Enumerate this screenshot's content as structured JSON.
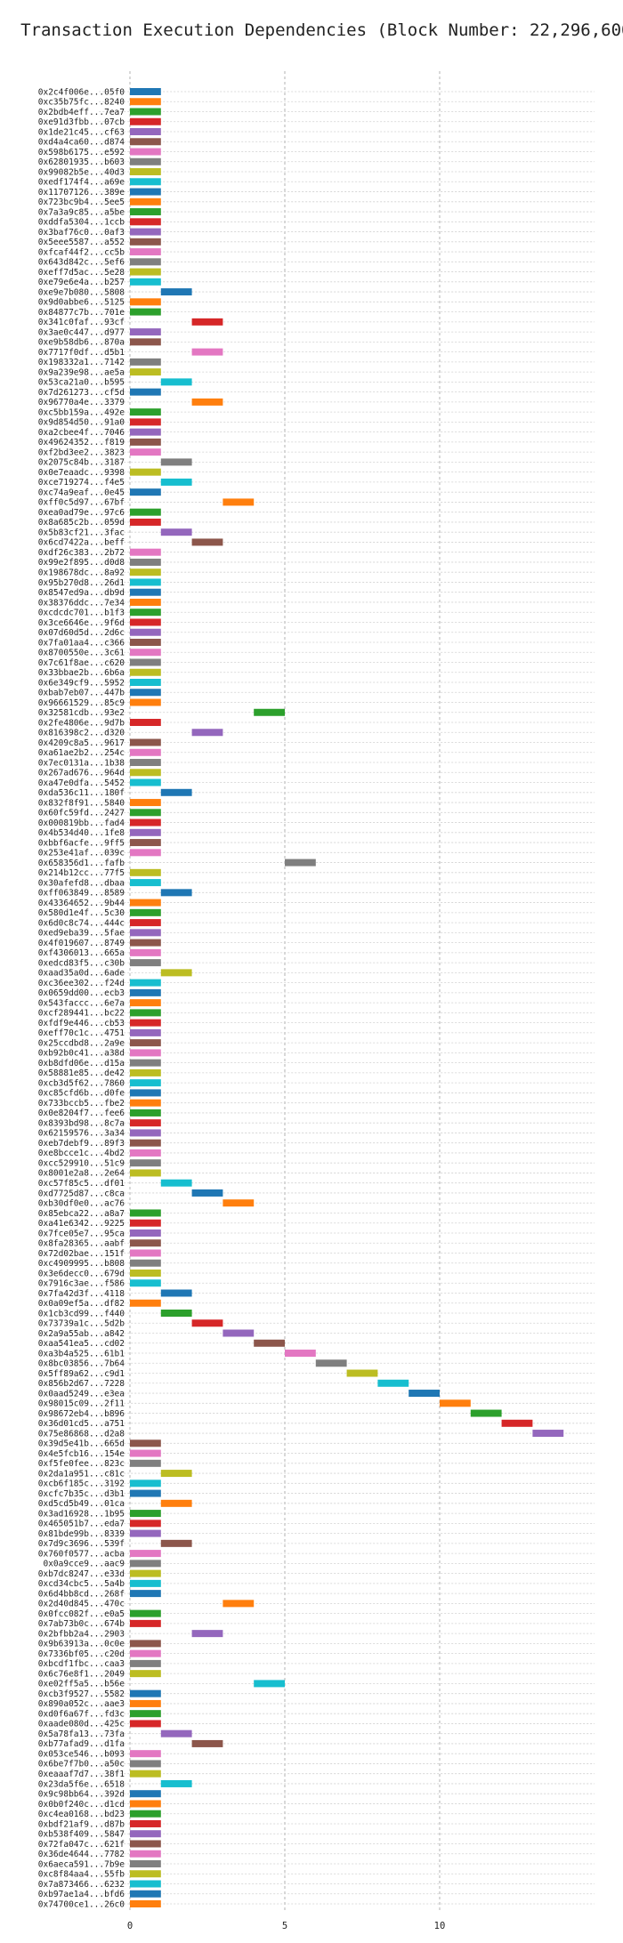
{
  "chart_data": {
    "type": "bar",
    "orientation": "horizontal",
    "title": "Transaction Execution Dependencies (Block Number: 22,296,600)",
    "xlabel": "",
    "ylabel": "",
    "xlim": [
      -1,
      15
    ],
    "xticks": [
      0,
      5,
      10
    ],
    "grid": true,
    "legend": "none",
    "palette": [
      "#1f77b4",
      "#ff7f0e",
      "#2ca02c",
      "#d62728",
      "#9467bd",
      "#8c564b",
      "#e377c2",
      "#7f7f7f",
      "#bcbd22",
      "#17becf"
    ],
    "bars": [
      {
        "label": "0x2c4f006e...05f0",
        "start": 0,
        "end": 1
      },
      {
        "label": "0xc35b75fc...8240",
        "start": 0,
        "end": 1
      },
      {
        "label": "0x2bdb4eff...7ea7",
        "start": 0,
        "end": 1
      },
      {
        "label": "0xe91d3fbb...07cb",
        "start": 0,
        "end": 1
      },
      {
        "label": "0x1de21c45...cf63",
        "start": 0,
        "end": 1
      },
      {
        "label": "0xd4a4ca60...d874",
        "start": 0,
        "end": 1
      },
      {
        "label": "0x598b6175...e592",
        "start": 0,
        "end": 1
      },
      {
        "label": "0x62801935...b603",
        "start": 0,
        "end": 1
      },
      {
        "label": "0x99082b5e...40d3",
        "start": 0,
        "end": 1
      },
      {
        "label": "0xedf174f4...a69e",
        "start": 0,
        "end": 1
      },
      {
        "label": "0x11707126...389e",
        "start": 0,
        "end": 1
      },
      {
        "label": "0x723bc9b4...5ee5",
        "start": 0,
        "end": 1
      },
      {
        "label": "0x7a3a9c85...a5be",
        "start": 0,
        "end": 1
      },
      {
        "label": "0xddfa5304...1ccb",
        "start": 0,
        "end": 1
      },
      {
        "label": "0x3baf76c0...0af3",
        "start": 0,
        "end": 1
      },
      {
        "label": "0x5eee5587...a552",
        "start": 0,
        "end": 1
      },
      {
        "label": "0xfcaf44f2...cc5b",
        "start": 0,
        "end": 1
      },
      {
        "label": "0x643d842c...5ef6",
        "start": 0,
        "end": 1
      },
      {
        "label": "0xeff7d5ac...5e28",
        "start": 0,
        "end": 1
      },
      {
        "label": "0xe79e6e4a...b257",
        "start": 0,
        "end": 1
      },
      {
        "label": "0xe9e7b080...5808",
        "start": 1,
        "end": 2
      },
      {
        "label": "0x9d0abbe6...5125",
        "start": 0,
        "end": 1
      },
      {
        "label": "0x84877c7b...701e",
        "start": 0,
        "end": 1
      },
      {
        "label": "0x341c0faf...93cf",
        "start": 2,
        "end": 3
      },
      {
        "label": "0x3ae0c447...d977",
        "start": 0,
        "end": 1
      },
      {
        "label": "0xe9b58db6...870a",
        "start": 0,
        "end": 1
      },
      {
        "label": "0x7717f0df...d5b1",
        "start": 2,
        "end": 3
      },
      {
        "label": "0x198332a1...7142",
        "start": 0,
        "end": 1
      },
      {
        "label": "0x9a239e98...ae5a",
        "start": 0,
        "end": 1
      },
      {
        "label": "0x53ca21a0...b595",
        "start": 1,
        "end": 2
      },
      {
        "label": "0x7d261273...cf5d",
        "start": 0,
        "end": 1
      },
      {
        "label": "0x96770a4e...3379",
        "start": 2,
        "end": 3
      },
      {
        "label": "0xc5bb159a...492e",
        "start": 0,
        "end": 1
      },
      {
        "label": "0x9d854d50...91a0",
        "start": 0,
        "end": 1
      },
      {
        "label": "0xa2cbee4f...7046",
        "start": 0,
        "end": 1
      },
      {
        "label": "0x49624352...f819",
        "start": 0,
        "end": 1
      },
      {
        "label": "0xf2bd3ee2...3823",
        "start": 0,
        "end": 1
      },
      {
        "label": "0x2075c84b...3187",
        "start": 1,
        "end": 2
      },
      {
        "label": "0x0e7eaadc...9398",
        "start": 0,
        "end": 1
      },
      {
        "label": "0xce719274...f4e5",
        "start": 1,
        "end": 2
      },
      {
        "label": "0xc74a9eaf...0e45",
        "start": 0,
        "end": 1
      },
      {
        "label": "0xff0c5d97...67bf",
        "start": 3,
        "end": 4
      },
      {
        "label": "0xea0ad79e...97c6",
        "start": 0,
        "end": 1
      },
      {
        "label": "0x8a685c2b...059d",
        "start": 0,
        "end": 1
      },
      {
        "label": "0x5b83cf21...3fac",
        "start": 1,
        "end": 2
      },
      {
        "label": "0x6cd7422a...beff",
        "start": 2,
        "end": 3
      },
      {
        "label": "0xdf26c383...2b72",
        "start": 0,
        "end": 1
      },
      {
        "label": "0x99e2f895...d0d8",
        "start": 0,
        "end": 1
      },
      {
        "label": "0x198678dc...8a92",
        "start": 0,
        "end": 1
      },
      {
        "label": "0x95b270d8...26d1",
        "start": 0,
        "end": 1
      },
      {
        "label": "0x8547ed9a...db9d",
        "start": 0,
        "end": 1
      },
      {
        "label": "0x38376ddc...7e34",
        "start": 0,
        "end": 1
      },
      {
        "label": "0xcdcdc701...b1f3",
        "start": 0,
        "end": 1
      },
      {
        "label": "0x3ce6646e...9f6d",
        "start": 0,
        "end": 1
      },
      {
        "label": "0x07d60d5d...2d6c",
        "start": 0,
        "end": 1
      },
      {
        "label": "0x7fa01aa4...c366",
        "start": 0,
        "end": 1
      },
      {
        "label": "0x8700550e...3c61",
        "start": 0,
        "end": 1
      },
      {
        "label": "0x7c61f8ae...c620",
        "start": 0,
        "end": 1
      },
      {
        "label": "0x33bbae2b...6b6a",
        "start": 0,
        "end": 1
      },
      {
        "label": "0x6e349cf9...5952",
        "start": 0,
        "end": 1
      },
      {
        "label": "0xbab7eb07...447b",
        "start": 0,
        "end": 1
      },
      {
        "label": "0x96661529...85c9",
        "start": 0,
        "end": 1
      },
      {
        "label": "0x32581cdb...93e2",
        "start": 4,
        "end": 5
      },
      {
        "label": "0x2fe4806e...9d7b",
        "start": 0,
        "end": 1
      },
      {
        "label": "0x816398c2...d320",
        "start": 2,
        "end": 3
      },
      {
        "label": "0x4209c8a5...9617",
        "start": 0,
        "end": 1
      },
      {
        "label": "0xa61ae2b2...254c",
        "start": 0,
        "end": 1
      },
      {
        "label": "0x7ec0131a...1b38",
        "start": 0,
        "end": 1
      },
      {
        "label": "0x267ad676...964d",
        "start": 0,
        "end": 1
      },
      {
        "label": "0xa47e0dfa...5452",
        "start": 0,
        "end": 1
      },
      {
        "label": "0xda536c11...180f",
        "start": 1,
        "end": 2
      },
      {
        "label": "0x832f8f91...5840",
        "start": 0,
        "end": 1
      },
      {
        "label": "0x60fc59fd...2427",
        "start": 0,
        "end": 1
      },
      {
        "label": "0x000819bb...fad4",
        "start": 0,
        "end": 1
      },
      {
        "label": "0x4b534d40...1fe8",
        "start": 0,
        "end": 1
      },
      {
        "label": "0xbbf6acfe...9ff5",
        "start": 0,
        "end": 1
      },
      {
        "label": "0x253e41af...039c",
        "start": 0,
        "end": 1
      },
      {
        "label": "0x658356d1...fafb",
        "start": 5,
        "end": 6
      },
      {
        "label": "0x214b12cc...77f5",
        "start": 0,
        "end": 1
      },
      {
        "label": "0x30afefd8...dbaa",
        "start": 0,
        "end": 1
      },
      {
        "label": "0xff063849...8589",
        "start": 1,
        "end": 2
      },
      {
        "label": "0x43364652...9b44",
        "start": 0,
        "end": 1
      },
      {
        "label": "0x580d1e4f...5c30",
        "start": 0,
        "end": 1
      },
      {
        "label": "0x6d0c8c74...444c",
        "start": 0,
        "end": 1
      },
      {
        "label": "0xed9eba39...5fae",
        "start": 0,
        "end": 1
      },
      {
        "label": "0x4f019607...8749",
        "start": 0,
        "end": 1
      },
      {
        "label": "0xf4306013...665a",
        "start": 0,
        "end": 1
      },
      {
        "label": "0xedcd83f5...c30b",
        "start": 0,
        "end": 1
      },
      {
        "label": "0xaad35a0d...6ade",
        "start": 1,
        "end": 2
      },
      {
        "label": "0xc36ee302...f24d",
        "start": 0,
        "end": 1
      },
      {
        "label": "0x0659dd00...ecb3",
        "start": 0,
        "end": 1
      },
      {
        "label": "0x543faccc...6e7a",
        "start": 0,
        "end": 1
      },
      {
        "label": "0xcf289441...bc22",
        "start": 0,
        "end": 1
      },
      {
        "label": "0xfdf9e446...cb53",
        "start": 0,
        "end": 1
      },
      {
        "label": "0xeff70c1c...4751",
        "start": 0,
        "end": 1
      },
      {
        "label": "0x25ccdbd8...2a9e",
        "start": 0,
        "end": 1
      },
      {
        "label": "0xb92b0c41...a38d",
        "start": 0,
        "end": 1
      },
      {
        "label": "0xb8dfd06e...d15a",
        "start": 0,
        "end": 1
      },
      {
        "label": "0x58881e85...de42",
        "start": 0,
        "end": 1
      },
      {
        "label": "0xcb3d5f62...7860",
        "start": 0,
        "end": 1
      },
      {
        "label": "0xc85cfd6b...d0fe",
        "start": 0,
        "end": 1
      },
      {
        "label": "0x733bccb5...fbe2",
        "start": 0,
        "end": 1
      },
      {
        "label": "0x0e8204f7...fee6",
        "start": 0,
        "end": 1
      },
      {
        "label": "0x8393bd98...8c7a",
        "start": 0,
        "end": 1
      },
      {
        "label": "0x62159576...3a34",
        "start": 0,
        "end": 1
      },
      {
        "label": "0xeb7debf9...89f3",
        "start": 0,
        "end": 1
      },
      {
        "label": "0xe8bcce1c...4bd2",
        "start": 0,
        "end": 1
      },
      {
        "label": "0xcc529910...51c9",
        "start": 0,
        "end": 1
      },
      {
        "label": "0x8001e2a8...2e64",
        "start": 0,
        "end": 1
      },
      {
        "label": "0xc57f85c5...df01",
        "start": 1,
        "end": 2
      },
      {
        "label": "0xd7725d87...c8ca",
        "start": 2,
        "end": 3
      },
      {
        "label": "0xb30df0e0...ac76",
        "start": 3,
        "end": 4
      },
      {
        "label": "0x85ebca22...a8a7",
        "start": 0,
        "end": 1
      },
      {
        "label": "0xa41e6342...9225",
        "start": 0,
        "end": 1
      },
      {
        "label": "0x7fce05e7...95ca",
        "start": 0,
        "end": 1
      },
      {
        "label": "0x8fa28365...aabf",
        "start": 0,
        "end": 1
      },
      {
        "label": "0x72d02bae...151f",
        "start": 0,
        "end": 1
      },
      {
        "label": "0xc4909995...b808",
        "start": 0,
        "end": 1
      },
      {
        "label": "0x3e6decc0...679d",
        "start": 0,
        "end": 1
      },
      {
        "label": "0x7916c3ae...f586",
        "start": 0,
        "end": 1
      },
      {
        "label": "0x7fa42d3f...4118",
        "start": 1,
        "end": 2
      },
      {
        "label": "0x0a09ef5a...df82",
        "start": 0,
        "end": 1
      },
      {
        "label": "0x1cb3cd99...f440",
        "start": 1,
        "end": 2
      },
      {
        "label": "0x73739a1c...5d2b",
        "start": 2,
        "end": 3
      },
      {
        "label": "0x2a9a55ab...a842",
        "start": 3,
        "end": 4
      },
      {
        "label": "0xaa541ea5...cd02",
        "start": 4,
        "end": 5
      },
      {
        "label": "0xa3b4a525...61b1",
        "start": 5,
        "end": 6
      },
      {
        "label": "0x8bc03856...7b64",
        "start": 6,
        "end": 7
      },
      {
        "label": "0x5ff89a62...c9d1",
        "start": 7,
        "end": 8
      },
      {
        "label": "0x856b2d67...7228",
        "start": 8,
        "end": 9
      },
      {
        "label": "0x0aad5249...e3ea",
        "start": 9,
        "end": 10
      },
      {
        "label": "0x98015c09...2f11",
        "start": 10,
        "end": 11
      },
      {
        "label": "0x98672eb4...b896",
        "start": 11,
        "end": 12
      },
      {
        "label": "0x36d01cd5...a751",
        "start": 12,
        "end": 13
      },
      {
        "label": "0x75e86868...d2a8",
        "start": 13,
        "end": 14
      },
      {
        "label": "0x39d5e41b...665d",
        "start": 0,
        "end": 1
      },
      {
        "label": "0x4e5fcb16...154e",
        "start": 0,
        "end": 1
      },
      {
        "label": "0xf5fe0fee...823c",
        "start": 0,
        "end": 1
      },
      {
        "label": "0x2da1a951...c81c",
        "start": 1,
        "end": 2
      },
      {
        "label": "0xcb6f185c...3192",
        "start": 0,
        "end": 1
      },
      {
        "label": "0xcfc7b35c...d3b1",
        "start": 0,
        "end": 1
      },
      {
        "label": "0xd5cd5b49...01ca",
        "start": 1,
        "end": 2
      },
      {
        "label": "0x3ad16928...1b95",
        "start": 0,
        "end": 1
      },
      {
        "label": "0x465051b7...eda7",
        "start": 0,
        "end": 1
      },
      {
        "label": "0x81bde99b...8339",
        "start": 0,
        "end": 1
      },
      {
        "label": "0x7d9c3696...539f",
        "start": 1,
        "end": 2
      },
      {
        "label": "0x760f0577...acba",
        "start": 0,
        "end": 1
      },
      {
        "label": "0x0a9cce9...aac9",
        "start": 0,
        "end": 1
      },
      {
        "label": "0xb7dc8247...e33d",
        "start": 0,
        "end": 1
      },
      {
        "label": "0xcd34cbc5...5a4b",
        "start": 0,
        "end": 1
      },
      {
        "label": "0x6d4bb8cd...268f",
        "start": 0,
        "end": 1
      },
      {
        "label": "0x2d40d845...470c",
        "start": 3,
        "end": 4
      },
      {
        "label": "0x0fcc082f...e0a5",
        "start": 0,
        "end": 1
      },
      {
        "label": "0x7ab73b0c...674b",
        "start": 0,
        "end": 1
      },
      {
        "label": "0x2bfbb2a4...2903",
        "start": 2,
        "end": 3
      },
      {
        "label": "0x9b63913a...0c0e",
        "start": 0,
        "end": 1
      },
      {
        "label": "0x7336bf05...c20d",
        "start": 0,
        "end": 1
      },
      {
        "label": "0xbcdf1fbc...caa3",
        "start": 0,
        "end": 1
      },
      {
        "label": "0x6c76e8f1...2049",
        "start": 0,
        "end": 1
      },
      {
        "label": "0xe02ff5a5...b56e",
        "start": 4,
        "end": 5
      },
      {
        "label": "0xcb3f9527...5582",
        "start": 0,
        "end": 1
      },
      {
        "label": "0x890a052c...aae3",
        "start": 0,
        "end": 1
      },
      {
        "label": "0xd0f6a67f...fd3c",
        "start": 0,
        "end": 1
      },
      {
        "label": "0xaade080d...425c",
        "start": 0,
        "end": 1
      },
      {
        "label": "0x5a78fa13...73fa",
        "start": 1,
        "end": 2
      },
      {
        "label": "0xb77afad9...d1fa",
        "start": 2,
        "end": 3
      },
      {
        "label": "0x053ce546...b093",
        "start": 0,
        "end": 1
      },
      {
        "label": "0x6be7f7b0...a50c",
        "start": 0,
        "end": 1
      },
      {
        "label": "0xeaaaf7d7...38f1",
        "start": 0,
        "end": 1
      },
      {
        "label": "0x23da5f6e...6518",
        "start": 1,
        "end": 2
      },
      {
        "label": "0x9c98bb64...392d",
        "start": 0,
        "end": 1
      },
      {
        "label": "0x0b0f240c...d1cd",
        "start": 0,
        "end": 1
      },
      {
        "label": "0xc4ea0168...bd23",
        "start": 0,
        "end": 1
      },
      {
        "label": "0xbdf21af9...d87b",
        "start": 0,
        "end": 1
      },
      {
        "label": "0xb538f409...5847",
        "start": 0,
        "end": 1
      },
      {
        "label": "0x72fa047c...621f",
        "start": 0,
        "end": 1
      },
      {
        "label": "0x36de4644...7782",
        "start": 0,
        "end": 1
      },
      {
        "label": "0x6aeca591...7b9e",
        "start": 0,
        "end": 1
      },
      {
        "label": "0xc8f84aa4...55fb",
        "start": 0,
        "end": 1
      },
      {
        "label": "0x7a873466...6232",
        "start": 0,
        "end": 1
      },
      {
        "label": "0xb97ae1a4...bfd6",
        "start": 0,
        "end": 1
      },
      {
        "label": "0x74700ce1...26c0",
        "start": 0,
        "end": 1
      }
    ]
  }
}
